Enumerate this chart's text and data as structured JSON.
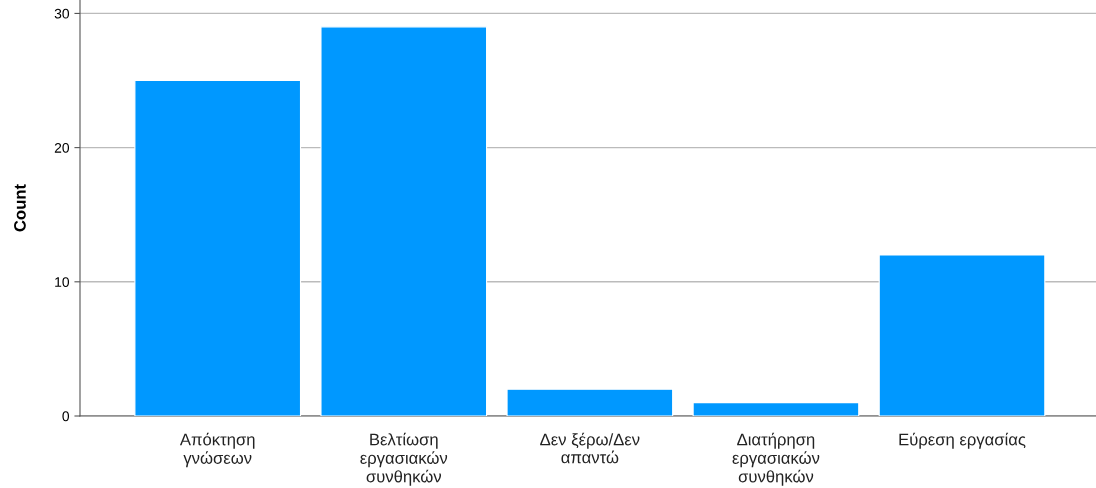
{
  "chart_data": {
    "type": "bar",
    "ylabel": "Count",
    "categories": [
      "Απόκτηση\nγνώσεων",
      "Βελτίωση\nεργασιακών\nσυνθηκών",
      "Δεν ξέρω/Δεν\nαπαντώ",
      "Διατήρηση\nεργασιακών\nσυνθηκών",
      "Εύρεση εργασίας"
    ],
    "values": [
      25,
      29,
      2,
      1,
      12
    ],
    "color": "#0098ff",
    "ylim": [
      0,
      31
    ],
    "yticks": [
      0,
      10,
      20,
      30
    ],
    "grid": "y"
  }
}
